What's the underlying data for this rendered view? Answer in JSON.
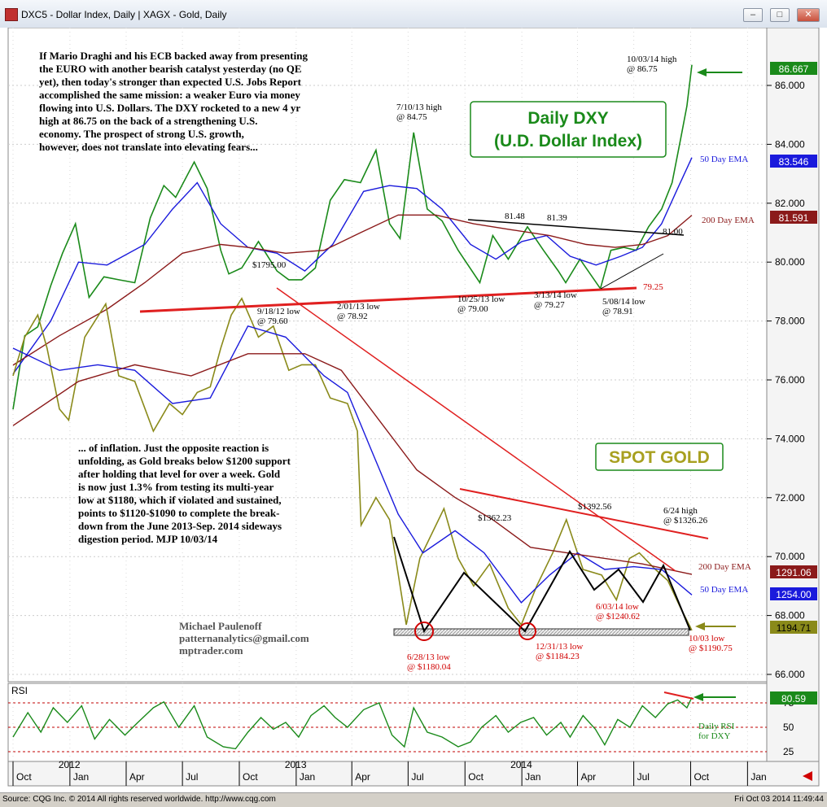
{
  "window": {
    "title": "DXC5 - Dollar Index, Daily  |  XAGX - Gold, Daily",
    "buttons": [
      "minimize",
      "restore",
      "close"
    ]
  },
  "status": {
    "left": "Source: CQG Inc. © 2014 All rights reserved worldwide. http://www.cqg.com",
    "right": "Fri Oct 03 2014 11:49:44"
  },
  "notes": {
    "top": [
      "If Mario Draghi and his ECB backed away from presenting",
      "the EURO with another bearish catalyst yesterday (no QE",
      "yet), then today's stronger than expected U.S. Jobs Report",
      "accomplished the same mission: a weaker Euro via money",
      "flowing into U.S. Dollars. The DXY rocketed to a new 4 yr",
      "high at 86.75 on the back of a strengthening U.S.",
      "economy. The prospect of strong U.S. growth,",
      "however, does not translate into elevating fears..."
    ],
    "bottom": [
      "... of inflation. Just the opposite reaction is",
      "unfolding, as Gold breaks below $1200 support",
      "after holding that level for over a week. Gold",
      "is now just 1.3% from testing its multi-year",
      "low at $1180, which if violated and sustained,",
      "points to $1120-$1090 to complete the break-",
      "down from the June 2013-Sep. 2014 sideways",
      "digestion period. MJP 10/03/14"
    ],
    "author": [
      "Michael Paulenoff",
      "patternanalytics@gmail.com",
      "mptrader.com"
    ]
  },
  "chart_data": [
    {
      "type": "line",
      "title": "Daily DXY\n(U.D. Dollar Index)",
      "ylim": [
        65,
        87.5
      ],
      "y_ticks": [
        "86.000",
        "84.000",
        "82.000",
        "80.000",
        "78.000",
        "76.000",
        "74.000",
        "72.000",
        "70.000",
        "68.000",
        "66.000"
      ],
      "x_month_labels": [
        "Oct",
        "Jan",
        "Apr",
        "Jul",
        "Oct",
        "Jan",
        "Apr",
        "Jul",
        "Oct",
        "Jan",
        "Apr",
        "Jul",
        "Oct",
        "Jan"
      ],
      "x_year_labels": [
        "2012",
        "2013",
        "2014"
      ],
      "series": [
        {
          "name": "DXY",
          "color": "#1a8a1a",
          "x": [
            "2011-10-01",
            "2011-10-20",
            "2011-11-10",
            "2011-12-01",
            "2011-12-20",
            "2012-01-10",
            "2012-02-01",
            "2012-02-25",
            "2012-03-20",
            "2012-04-15",
            "2012-05-10",
            "2012-06-01",
            "2012-06-20",
            "2012-07-20",
            "2012-08-10",
            "2012-09-01",
            "2012-09-14",
            "2012-10-05",
            "2012-11-01",
            "2012-12-01",
            "2012-12-20",
            "2013-01-10",
            "2013-02-01",
            "2013-02-25",
            "2013-03-20",
            "2013-04-15",
            "2013-05-10",
            "2013-06-01",
            "2013-06-18",
            "2013-07-10",
            "2013-08-01",
            "2013-08-25",
            "2013-09-20",
            "2013-10-25",
            "2013-11-15",
            "2013-12-10",
            "2014-01-10",
            "2014-02-05",
            "2014-03-01",
            "2014-03-13",
            "2014-04-05",
            "2014-05-08",
            "2014-05-25",
            "2014-06-15",
            "2014-07-05",
            "2014-07-25",
            "2014-08-15",
            "2014-09-01",
            "2014-09-15",
            "2014-09-25",
            "2014-10-03"
          ],
          "values": [
            75.0,
            77.5,
            77.8,
            79.2,
            80.3,
            81.3,
            78.8,
            79.5,
            79.4,
            79.3,
            81.5,
            82.6,
            82.2,
            83.4,
            82.5,
            80.4,
            79.6,
            79.8,
            80.7,
            79.7,
            79.4,
            79.4,
            79.8,
            82.1,
            82.8,
            82.7,
            83.8,
            81.3,
            80.8,
            84.4,
            81.8,
            81.4,
            80.4,
            79.3,
            80.9,
            80.1,
            81.2,
            80.4,
            79.7,
            79.3,
            80.1,
            79.1,
            80.4,
            80.5,
            80.4,
            81.2,
            81.8,
            82.7,
            84.2,
            85.3,
            86.7
          ]
        },
        {
          "name": "50 Day EMA",
          "color": "#1a1adc",
          "x": [
            "2011-10-01",
            "2011-12-01",
            "2012-01-15",
            "2012-03-01",
            "2012-05-01",
            "2012-06-15",
            "2012-07-25",
            "2012-09-01",
            "2012-10-15",
            "2012-12-01",
            "2013-01-15",
            "2013-03-01",
            "2013-04-20",
            "2013-06-01",
            "2013-07-15",
            "2013-08-25",
            "2013-10-10",
            "2013-11-20",
            "2014-01-01",
            "2014-02-10",
            "2014-03-20",
            "2014-05-01",
            "2014-06-10",
            "2014-07-15",
            "2014-08-15",
            "2014-09-10",
            "2014-10-03"
          ],
          "values": [
            76.2,
            78.0,
            80.0,
            79.9,
            80.6,
            81.8,
            82.7,
            81.3,
            80.5,
            80.3,
            79.7,
            80.6,
            82.4,
            82.6,
            82.5,
            81.8,
            80.6,
            80.1,
            80.7,
            80.9,
            80.2,
            79.9,
            80.2,
            80.5,
            81.3,
            82.5,
            83.55
          ]
        },
        {
          "name": "200 Day EMA",
          "color": "#8b1a1a",
          "x": [
            "2011-10-01",
            "2011-12-15",
            "2012-03-01",
            "2012-05-01",
            "2012-07-01",
            "2012-09-01",
            "2012-10-15",
            "2012-12-15",
            "2013-02-15",
            "2013-04-15",
            "2013-06-15",
            "2013-08-15",
            "2013-10-15",
            "2013-12-15",
            "2014-02-15",
            "2014-04-15",
            "2014-06-01",
            "2014-07-15",
            "2014-08-25",
            "2014-10-03"
          ],
          "values": [
            76.5,
            77.5,
            78.4,
            79.3,
            80.3,
            80.6,
            80.5,
            80.3,
            80.4,
            81.0,
            81.6,
            81.6,
            81.3,
            81.1,
            80.9,
            80.6,
            80.5,
            80.6,
            80.9,
            81.59
          ]
        },
        {
          "name": "Spot Gold",
          "color": "#8a8a1a",
          "x": [
            "2011-10-01",
            "2011-10-20",
            "2011-11-10",
            "2011-11-25",
            "2011-12-15",
            "2011-12-30",
            "2012-01-25",
            "2012-02-28",
            "2012-03-20",
            "2012-04-15",
            "2012-05-15",
            "2012-06-10",
            "2012-07-01",
            "2012-07-25",
            "2012-08-15",
            "2012-09-01",
            "2012-09-18",
            "2012-10-05",
            "2012-11-01",
            "2012-11-25",
            "2012-12-20",
            "2013-01-10",
            "2013-02-01",
            "2013-02-25",
            "2013-03-25",
            "2013-04-10",
            "2013-04-16",
            "2013-05-10",
            "2013-06-01",
            "2013-06-28",
            "2013-07-20",
            "2013-08-28",
            "2013-09-20",
            "2013-10-15",
            "2013-11-10",
            "2013-12-10",
            "2013-12-31",
            "2014-01-25",
            "2014-02-20",
            "2014-03-14",
            "2014-04-10",
            "2014-05-10",
            "2014-06-03",
            "2014-06-24",
            "2014-07-10",
            "2014-08-05",
            "2014-08-25",
            "2014-09-15",
            "2014-10-03"
          ],
          "values": [
            1650,
            1720,
            1760,
            1700,
            1590,
            1570,
            1720,
            1780,
            1650,
            1640,
            1550,
            1600,
            1580,
            1620,
            1630,
            1700,
            1760,
            1790,
            1720,
            1740,
            1660,
            1670,
            1670,
            1610,
            1600,
            1550,
            1380,
            1430,
            1390,
            1200,
            1320,
            1410,
            1320,
            1270,
            1310,
            1230,
            1200,
            1270,
            1330,
            1390,
            1300,
            1290,
            1245,
            1320,
            1330,
            1300,
            1280,
            1230,
            1190
          ]
        },
        {
          "name": "Gold 50 Day EMA",
          "color": "#1a1adc",
          "x": [
            "2011-10-01",
            "2011-12-15",
            "2012-02-15",
            "2012-04-15",
            "2012-06-15",
            "2012-08-15",
            "2012-10-15",
            "2012-12-15",
            "2013-02-15",
            "2013-03-25",
            "2013-05-01",
            "2013-06-15",
            "2013-07-25",
            "2013-09-15",
            "2013-11-01",
            "2013-12-31",
            "2014-02-15",
            "2014-04-01",
            "2014-05-15",
            "2014-07-01",
            "2014-08-15",
            "2014-10-03"
          ],
          "values": [
            1700,
            1660,
            1670,
            1660,
            1600,
            1610,
            1740,
            1720,
            1650,
            1620,
            1520,
            1400,
            1330,
            1370,
            1330,
            1240,
            1290,
            1330,
            1300,
            1305,
            1300,
            1254
          ]
        },
        {
          "name": "Gold 200 Day EMA",
          "color": "#8b1a1a",
          "x": [
            "2011-10-01",
            "2012-01-15",
            "2012-04-15",
            "2012-07-15",
            "2012-10-15",
            "2013-01-15",
            "2013-03-15",
            "2013-05-15",
            "2013-07-15",
            "2013-09-15",
            "2013-11-15",
            "2014-01-15",
            "2014-03-15",
            "2014-05-15",
            "2014-07-15",
            "2014-10-03"
          ],
          "values": [
            1560,
            1640,
            1670,
            1650,
            1690,
            1690,
            1660,
            1570,
            1480,
            1430,
            1390,
            1340,
            1330,
            1320,
            1310,
            1291
          ]
        }
      ],
      "right_axis_badges": [
        {
          "label": "86.667",
          "bg": "#1a8a1a",
          "fg": "#ffffff"
        },
        {
          "label": "83.546",
          "bg": "#1a1adc",
          "fg": "#ffffff"
        },
        {
          "label": "81.591",
          "bg": "#8b1a1a",
          "fg": "#ffffff"
        },
        {
          "label": "1291.06",
          "bg": "#8b1a1a",
          "fg": "#ffffff"
        },
        {
          "label": "1254.00",
          "bg": "#1a1adc",
          "fg": "#ffffff"
        },
        {
          "label": "1194.71",
          "bg": "#8a8a1a",
          "fg": "#000000"
        }
      ],
      "series_labels": {
        "dxy_ema50": "50 Day EMA",
        "dxy_ema200": "200 Day EMA",
        "gold_ema200": "200 Day EMA",
        "gold_ema50": "50 Day EMA",
        "gold_title": "SPOT GOLD"
      },
      "annotations": {
        "dxy_high_2014": [
          "10/03/14 high",
          "@ 86.75"
        ],
        "dxy_high_2013": [
          "7/10/13 high",
          "@ 84.75"
        ],
        "level_8148": "81.48",
        "level_8139": "81.39",
        "level_8100": "81.00",
        "gold_1795": "$1795.00",
        "level_7925": "79.25",
        "low_0918": [
          "9/18/12 low",
          "@ 79.60"
        ],
        "low_0201": [
          "2/01/13 low",
          "@ 78.92"
        ],
        "low_1025": [
          "10/25/13 low",
          "@ 79.00"
        ],
        "low_0313": [
          "3/13/14 low",
          "@ 79.27"
        ],
        "low_0508": [
          "5/08/14 low",
          "@ 78.91"
        ],
        "gold_1362": "$1362.23",
        "gold_1392": "$1392.56",
        "gold_0624": [
          "6/24 high",
          "@ $1326.26"
        ],
        "gold_0603": [
          "6/03/14 low",
          "@ $1240.62"
        ],
        "gold_1003": [
          "10/03 low",
          "@ $1190.75"
        ],
        "gold_0628": [
          "6/28/13 low",
          "@ $1180.04"
        ],
        "gold_1231": [
          "12/31/13 low",
          "@ $1184.23"
        ]
      }
    },
    {
      "type": "line",
      "title": "RSI",
      "ylim": [
        20,
        85
      ],
      "y_ticks": [
        "75",
        "50",
        "25"
      ],
      "label": [
        "Daily RSI",
        "for DXY"
      ],
      "badge": {
        "label": "80.59",
        "bg": "#1a8a1a",
        "fg": "#ffffff"
      },
      "series": [
        {
          "name": "RSI",
          "color": "#1a8a1a",
          "x": [
            "2011-10-01",
            "2011-10-25",
            "2011-11-15",
            "2011-12-05",
            "2011-12-28",
            "2012-01-20",
            "2012-02-10",
            "2012-03-05",
            "2012-03-30",
            "2012-04-20",
            "2012-05-15",
            "2012-06-01",
            "2012-06-25",
            "2012-07-20",
            "2012-08-10",
            "2012-09-05",
            "2012-09-25",
            "2012-10-15",
            "2012-11-05",
            "2012-11-25",
            "2012-12-15",
            "2013-01-05",
            "2013-01-25",
            "2013-02-15",
            "2013-03-05",
            "2013-03-25",
            "2013-04-20",
            "2013-05-15",
            "2013-06-05",
            "2013-06-25",
            "2013-07-10",
            "2013-08-01",
            "2013-08-25",
            "2013-09-20",
            "2013-10-10",
            "2013-10-28",
            "2013-11-20",
            "2013-12-10",
            "2013-12-30",
            "2014-01-20",
            "2014-02-10",
            "2014-03-05",
            "2014-03-20",
            "2014-04-10",
            "2014-04-30",
            "2014-05-15",
            "2014-06-05",
            "2014-06-25",
            "2014-07-15",
            "2014-08-05",
            "2014-08-25",
            "2014-09-10",
            "2014-09-25",
            "2014-10-03"
          ],
          "values": [
            40,
            65,
            45,
            70,
            55,
            72,
            38,
            58,
            42,
            55,
            70,
            76,
            50,
            72,
            40,
            30,
            28,
            45,
            60,
            48,
            55,
            40,
            62,
            72,
            60,
            50,
            68,
            75,
            42,
            30,
            70,
            45,
            40,
            30,
            35,
            50,
            62,
            45,
            55,
            60,
            42,
            55,
            40,
            62,
            48,
            32,
            58,
            50,
            72,
            60,
            74,
            78,
            70,
            80.59
          ]
        }
      ]
    }
  ]
}
